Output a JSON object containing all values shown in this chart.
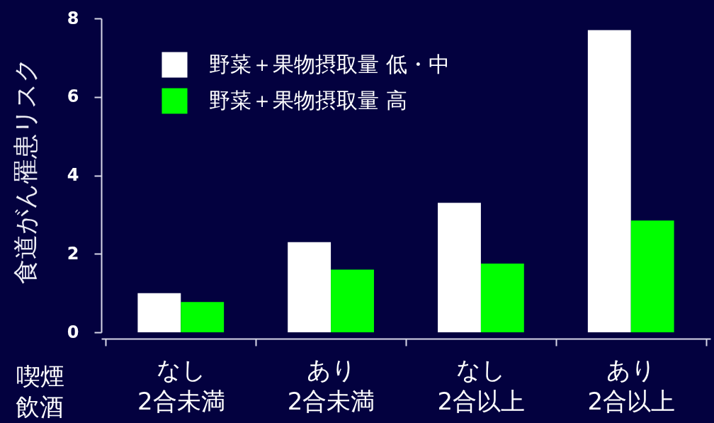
{
  "chart_data": {
    "type": "bar",
    "ylabel": "食道がん罹患リスク",
    "xlabel": "喫煙",
    "annotations": [
      "飲酒"
    ],
    "categories": [
      "なし\n2合未満",
      "あり\n2合未満",
      "なし\n2合以上",
      "あり\n2合以上"
    ],
    "series": [
      {
        "name": "野菜＋果物摂取量 低・中",
        "color": "#ffffff",
        "values": [
          1.0,
          2.3,
          3.3,
          7.7
        ]
      },
      {
        "name": "野菜＋果物摂取量 高",
        "color": "#00ff00",
        "values": [
          0.77,
          1.6,
          1.75,
          2.85
        ]
      }
    ],
    "ylim": [
      0,
      8
    ],
    "yticks": [
      0,
      2,
      4,
      6,
      8
    ],
    "grid": false,
    "legend": "top left"
  }
}
